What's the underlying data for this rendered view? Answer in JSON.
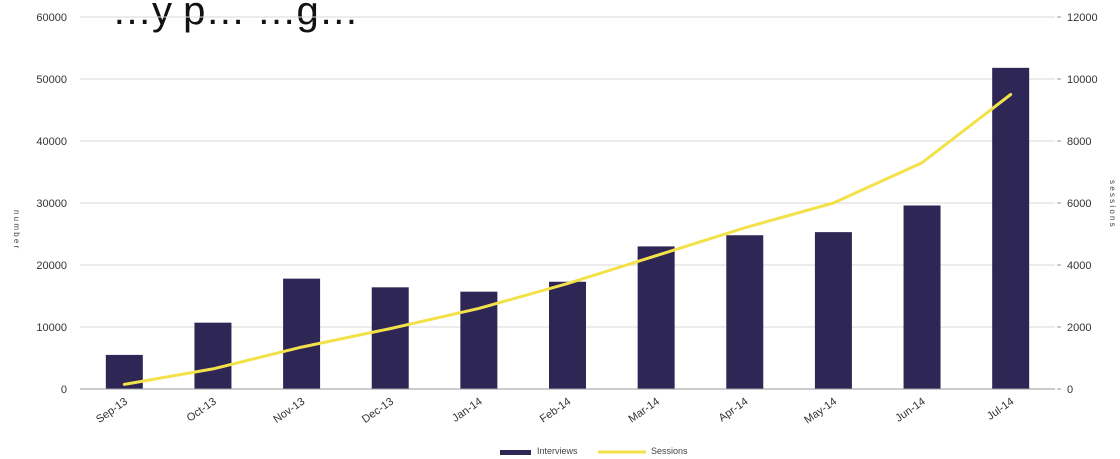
{
  "chart_data": {
    "type": "bar",
    "title": "…y p…  …g…",
    "categories": [
      "Sep-13",
      "Oct-13",
      "Nov-13",
      "Dec-13",
      "Jan-14",
      "Feb-14",
      "Mar-14",
      "Apr-14",
      "May-14",
      "Jun-14",
      "Jul-14"
    ],
    "series": [
      {
        "name": "Interviews",
        "type": "bar",
        "axis": "left",
        "color": "#2e2756",
        "values": [
          5500,
          10700,
          17800,
          16400,
          15700,
          17300,
          23000,
          24800,
          25300,
          29600,
          51800
        ]
      },
      {
        "name": "Sessions",
        "type": "line",
        "axis": "right",
        "color": "#f3e14a",
        "values": [
          150,
          650,
          1350,
          1950,
          2600,
          3400,
          4300,
          5200,
          6000,
          7300,
          9500
        ]
      }
    ],
    "y_left": {
      "min": 0,
      "max": 60000,
      "ticks": [
        "0",
        "10000",
        "20000",
        "30000",
        "40000",
        "50000",
        "60000"
      ],
      "label": "n u m b e r"
    },
    "y_right": {
      "min": 0,
      "max": 12000,
      "ticks": [
        "0",
        "2000",
        "4000",
        "6000",
        "8000",
        "10000",
        "12000"
      ],
      "label": "s e s s i o n s"
    },
    "legend_position": "bottom",
    "grid": true
  }
}
